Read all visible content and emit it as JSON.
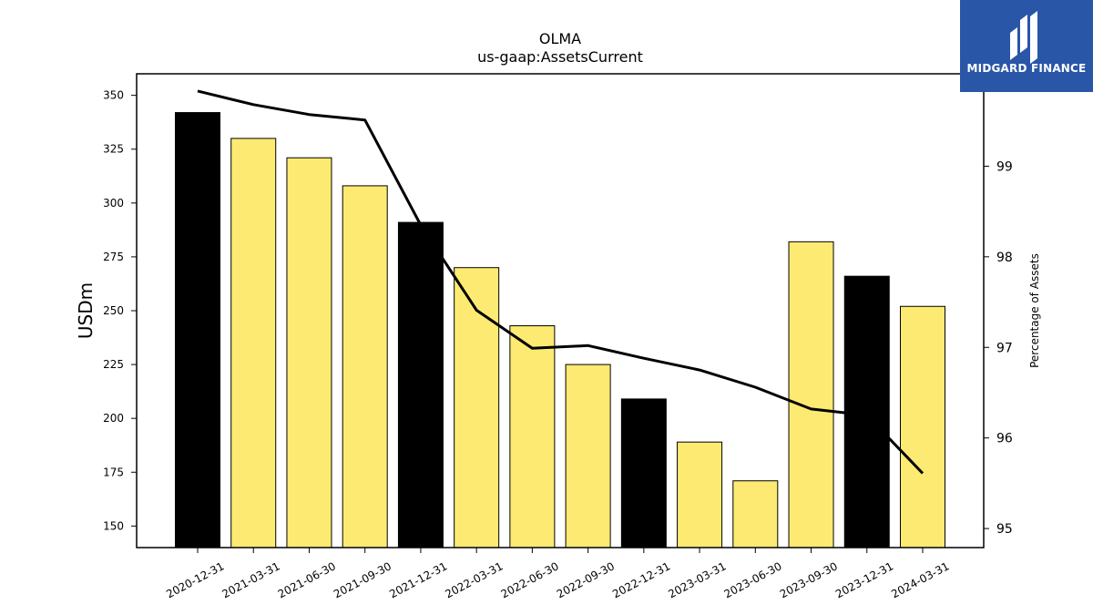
{
  "chart_data": {
    "type": "bar",
    "title": "OLMA",
    "subtitle": "us-gaap:AssetsCurrent",
    "ylabel": "USDm",
    "y2label": "Percentage of Assets",
    "categories": [
      "2020-12-31",
      "2021-03-31",
      "2021-06-30",
      "2021-09-30",
      "2021-12-31",
      "2022-03-31",
      "2022-06-30",
      "2022-09-30",
      "2022-12-31",
      "2023-03-31",
      "2023-06-30",
      "2023-09-30",
      "2023-12-31",
      "2024-03-31"
    ],
    "series": [
      {
        "type": "bar",
        "values": [
          342,
          330,
          321,
          308,
          291,
          270,
          243,
          225,
          209,
          189,
          171,
          282,
          266,
          252
        ]
      },
      {
        "type": "line",
        "axis": "right",
        "values": [
          99.83,
          99.68,
          99.57,
          99.51,
          98.35,
          97.41,
          96.99,
          97.02,
          96.88,
          96.75,
          96.56,
          96.32,
          96.25,
          95.61
        ]
      }
    ],
    "year_end_bars": [
      true,
      false,
      false,
      false,
      true,
      false,
      false,
      false,
      true,
      false,
      false,
      false,
      true,
      false
    ],
    "colors": {
      "year_end_bar": "#000000",
      "quarter_bar": "#fdea72",
      "line": "#000000"
    },
    "ylim": [
      140,
      360
    ],
    "yticks": [
      150,
      175,
      200,
      225,
      250,
      275,
      300,
      325,
      350
    ],
    "y2lim": [
      94.79,
      100.02
    ],
    "y2ticks": [
      95,
      96,
      97,
      98,
      99
    ],
    "grid": false
  },
  "brand": {
    "name": "MIDGARD FINANCE",
    "color": "#2a56a8"
  }
}
